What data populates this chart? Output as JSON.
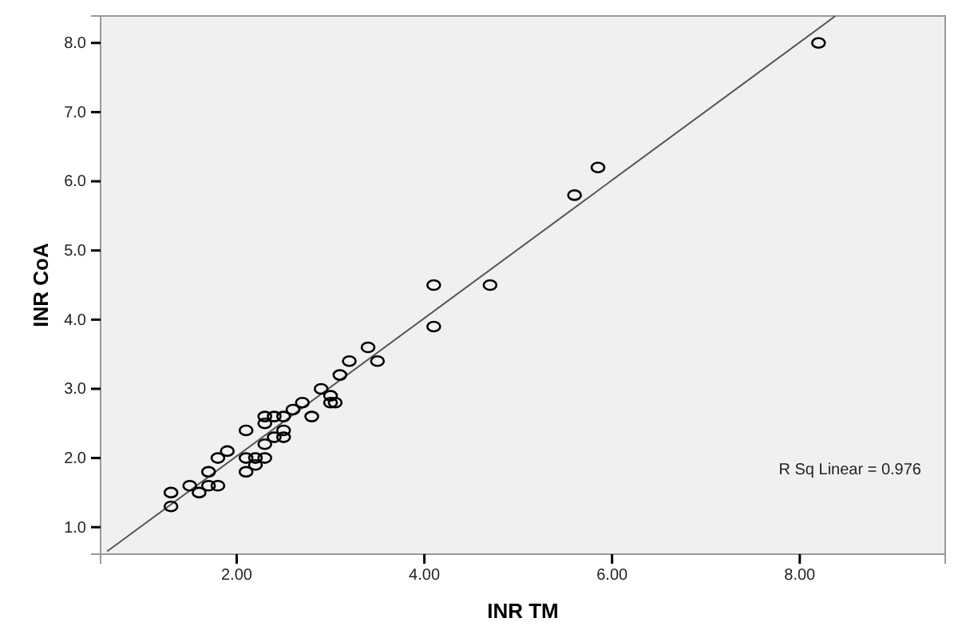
{
  "chart_data": {
    "type": "scatter",
    "xlabel": "INR TM",
    "ylabel": "INR CoA",
    "xlim": [
      0.55,
      9.55
    ],
    "ylim": [
      0.61,
      8.39
    ],
    "xticks": [
      {
        "value": 2,
        "label": "2.00"
      },
      {
        "value": 4,
        "label": "4.00"
      },
      {
        "value": 6,
        "label": "6.00"
      },
      {
        "value": 8,
        "label": "8.00"
      }
    ],
    "yticks": [
      {
        "value": 1,
        "label": "1.0"
      },
      {
        "value": 2,
        "label": "2.0"
      },
      {
        "value": 3,
        "label": "3.0"
      },
      {
        "value": 4,
        "label": "4.0"
      },
      {
        "value": 5,
        "label": "5.0"
      },
      {
        "value": 6,
        "label": "6.0"
      },
      {
        "value": 7,
        "label": "7.0"
      },
      {
        "value": 8,
        "label": "8.0"
      }
    ],
    "annotations": [
      "R Sq Linear = 0.976"
    ],
    "series": [
      {
        "marker": "circle",
        "color": "#000000",
        "x": [
          1.3,
          1.3,
          1.5,
          1.6,
          1.7,
          1.7,
          1.8,
          1.8,
          1.9,
          2.1,
          2.1,
          2.1,
          2.2,
          2.2,
          2.3,
          2.3,
          2.3,
          2.3,
          2.4,
          2.4,
          2.5,
          2.5,
          2.5,
          2.6,
          2.7,
          2.8,
          2.9,
          3.0,
          3.0,
          3.05,
          3.1,
          3.2,
          3.4,
          3.5,
          4.1,
          4.1,
          4.7,
          5.6,
          5.85,
          8.2
        ],
        "values": [
          1.5,
          1.3,
          1.6,
          1.5,
          1.8,
          1.6,
          1.6,
          2.0,
          2.1,
          2.4,
          2.0,
          1.8,
          2.0,
          1.9,
          2.0,
          2.2,
          2.5,
          2.6,
          2.6,
          2.3,
          2.6,
          2.4,
          2.3,
          2.7,
          2.8,
          2.6,
          3.0,
          2.9,
          2.8,
          2.8,
          3.2,
          3.4,
          3.6,
          3.4,
          4.5,
          3.9,
          4.5,
          5.8,
          6.2,
          8.0
        ]
      },
      {
        "type": "line",
        "marker": "none",
        "color": "#555555",
        "x": [
          0.62,
          8.38
        ],
        "values": [
          0.65,
          8.39
        ]
      }
    ]
  }
}
